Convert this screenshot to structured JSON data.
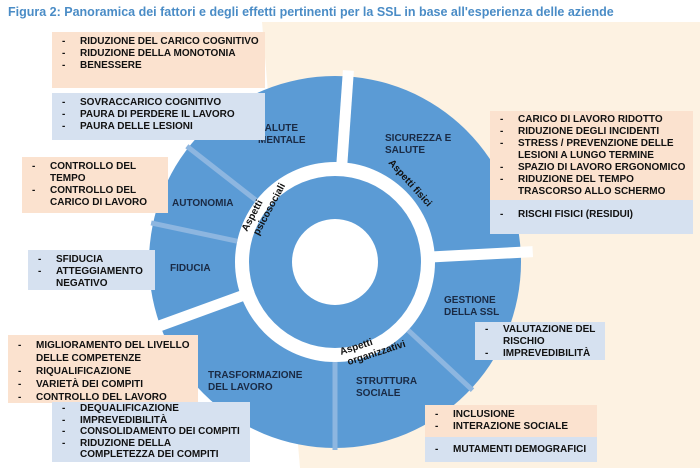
{
  "title": "Figura 2: Panoramica dei fattori e degli effetti pertinenti per la SSL in base all'esperienza delle aziende",
  "colors": {
    "ring": "#5b9bd5",
    "separator": "#8db6e0",
    "peach": "#fbe2cf",
    "blue": "#d6e1f0",
    "cream": "#fdf2e2",
    "title": "#4a8cc6"
  },
  "aspects": {
    "psicosociali": [
      "Aspetti",
      "psicosociali"
    ],
    "fisici": "Aspetti fisici",
    "organizzativi": [
      "Aspetti",
      "organizzativi"
    ]
  },
  "segments": {
    "salute_mentale": [
      "SALUTE",
      "MENTALE"
    ],
    "sicurezza": [
      "SICUREZZA E",
      "SALUTE"
    ],
    "autonomia": "AUTONOMIA",
    "fiducia": "FIDUCIA",
    "gestione": [
      "GESTIONE",
      "DELLA SSL"
    ],
    "trasformazione": [
      "TRASFORMAZIONE",
      "DEL LAVORO"
    ],
    "struttura": [
      "STRUTTURA",
      "SOCIALE"
    ]
  },
  "boxes": {
    "salute_pos": [
      "RIDUZIONE DEL CARICO COGNITIVO",
      "RIDUZIONE DELLA MONOTONIA",
      "BENESSERE"
    ],
    "salute_neg": [
      "SOVRACCARICO COGNITIVO",
      "PAURA DI PERDERE IL LAVORO",
      "PAURA DELLE LESIONI"
    ],
    "autonomia_pos": [
      "CONTROLLO DEL TEMPO",
      "CONTROLLO DEL CARICO DI LAVORO"
    ],
    "fiducia_neg": [
      "SFIDUCIA",
      "ATTEGGIAMENTO NEGATIVO"
    ],
    "sicurezza_pos": [
      "CARICO DI LAVORO RIDOTTO",
      "RIDUZIONE DEGLI INCIDENTI",
      "STRESS / PREVENZIONE DELLE LESIONI A LUNGO TERMINE",
      "SPAZIO DI LAVORO ERGONOMICO",
      "RIDUZIONE DEL TEMPO TRASCORSO ALLO SCHERMO"
    ],
    "sicurezza_neg": [
      "RISCHI FISICI (RESIDUI)"
    ],
    "gestione_neg": [
      "VALUTAZIONE DEL RISCHIO",
      "IMPREVEDIBILITÀ"
    ],
    "trasformazione_pos": [
      "MIGLIORAMENTO DEL LIVELLO DELLE COMPETENZE",
      "RIQUALIFICAZIONE",
      "VARIETÀ DEI COMPITI",
      "CONTROLLO DEL LAVORO"
    ],
    "trasformazione_neg": [
      "DEQUALIFICAZIONE",
      "IMPREVEDIBILITÀ",
      "CONSOLIDAMENTO DEI COMPITI",
      "RIDUZIONE DELLA COMPLETEZZA DEI COMPITI"
    ],
    "struttura_pos": [
      "INCLUSIONE",
      "INTERAZIONE SOCIALE"
    ],
    "struttura_neg": [
      "MUTAMENTI DEMOGRAFICI"
    ]
  }
}
